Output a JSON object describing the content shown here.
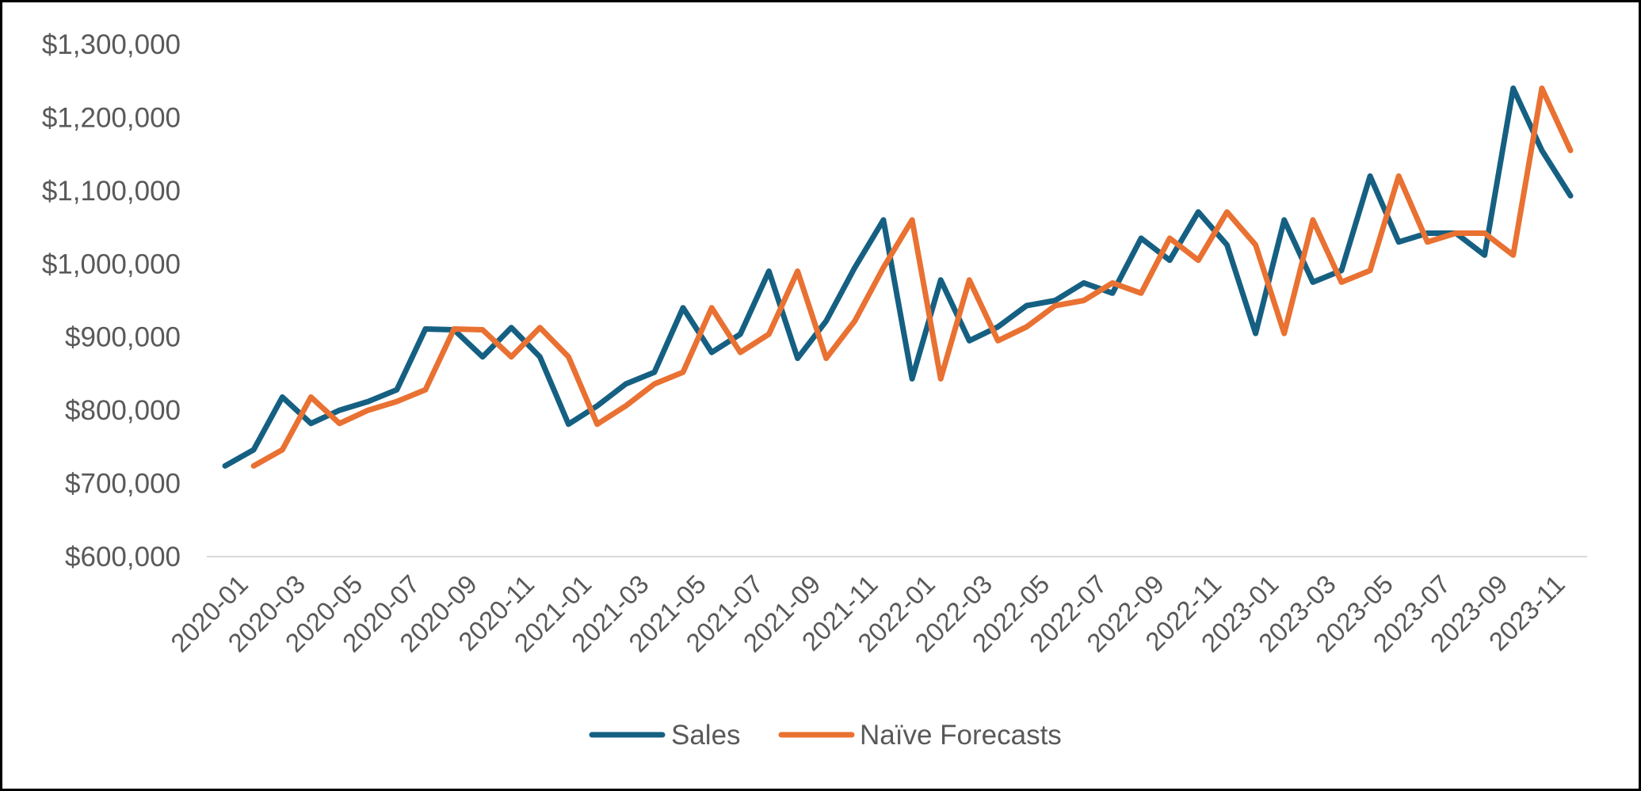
{
  "chart_data": {
    "type": "line",
    "title": "",
    "xlabel": "",
    "ylabel": "",
    "ylim": [
      600000,
      1300000
    ],
    "yticks": [
      600000,
      700000,
      800000,
      900000,
      1000000,
      1100000,
      1200000,
      1300000
    ],
    "ytick_labels": [
      "$600,000",
      "$700,000",
      "$800,000",
      "$900,000",
      "$1,000,000",
      "$1,100,000",
      "$1,200,000",
      "$1,300,000"
    ],
    "grid": "horizontal baseline only",
    "legend_position": "bottom",
    "categories": [
      "2020-01",
      "2020-02",
      "2020-03",
      "2020-04",
      "2020-05",
      "2020-06",
      "2020-07",
      "2020-08",
      "2020-09",
      "2020-10",
      "2020-11",
      "2020-12",
      "2021-01",
      "2021-02",
      "2021-03",
      "2021-04",
      "2021-05",
      "2021-06",
      "2021-07",
      "2021-08",
      "2021-09",
      "2021-10",
      "2021-11",
      "2021-12",
      "2022-01",
      "2022-02",
      "2022-03",
      "2022-04",
      "2022-05",
      "2022-06",
      "2022-07",
      "2022-08",
      "2022-09",
      "2022-10",
      "2022-11",
      "2022-12",
      "2023-01",
      "2023-02",
      "2023-03",
      "2023-04",
      "2023-05",
      "2023-06",
      "2023-07",
      "2023-08",
      "2023-09",
      "2023-10",
      "2023-11",
      "2023-12"
    ],
    "xtick_labels": [
      "2020-01",
      "2020-03",
      "2020-05",
      "2020-07",
      "2020-09",
      "2020-11",
      "2021-01",
      "2021-03",
      "2021-05",
      "2021-07",
      "2021-09",
      "2021-11",
      "2022-01",
      "2022-03",
      "2022-05",
      "2022-07",
      "2022-09",
      "2022-11",
      "2023-01",
      "2023-03",
      "2023-05",
      "2023-07",
      "2023-09",
      "2023-11"
    ],
    "series": [
      {
        "name": "Sales",
        "color": "#156082",
        "values": [
          724000,
          746000,
          818000,
          782000,
          800000,
          812000,
          828000,
          911000,
          910000,
          873000,
          913000,
          873000,
          781000,
          806000,
          836000,
          852000,
          940000,
          879000,
          904000,
          990000,
          871000,
          922000,
          995000,
          1060000,
          843000,
          978000,
          895000,
          914000,
          943000,
          950000,
          974000,
          960000,
          1035000,
          1005000,
          1071000,
          1026000,
          905000,
          1060000,
          975000,
          991000,
          1120000,
          1030000,
          1042000,
          1042000,
          1012000,
          1240000,
          1155000,
          1093000
        ]
      },
      {
        "name": "Naïve Forecasts",
        "color": "#E97132",
        "values": [
          null,
          724000,
          746000,
          818000,
          782000,
          800000,
          812000,
          828000,
          911000,
          910000,
          873000,
          913000,
          873000,
          781000,
          806000,
          836000,
          852000,
          940000,
          879000,
          904000,
          990000,
          871000,
          922000,
          995000,
          1060000,
          843000,
          978000,
          895000,
          914000,
          943000,
          950000,
          974000,
          960000,
          1035000,
          1005000,
          1071000,
          1026000,
          905000,
          1060000,
          975000,
          991000,
          1120000,
          1030000,
          1042000,
          1042000,
          1012000,
          1240000,
          1155000
        ]
      }
    ]
  }
}
